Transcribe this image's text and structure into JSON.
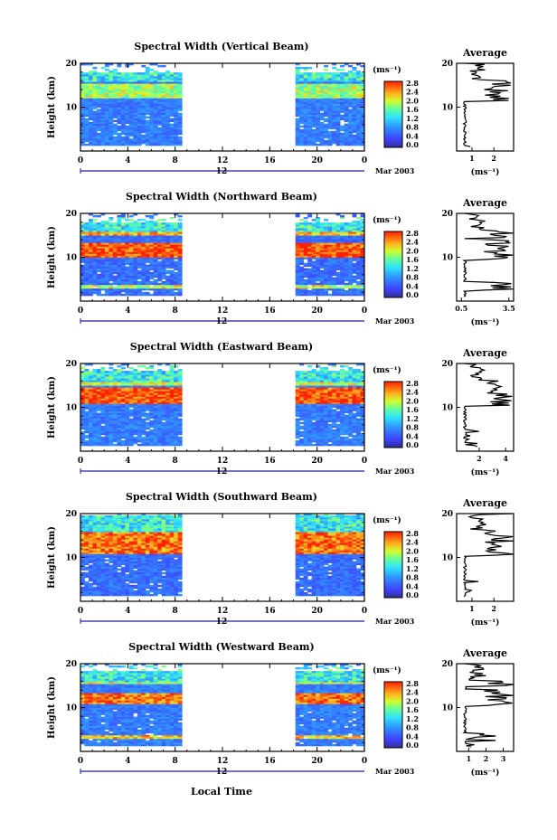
{
  "panels": [
    {
      "title": "Spectral Width (Vertical Beam)",
      "avg_ticks": [
        "1",
        "2"
      ],
      "avg_xlim": [
        0.3,
        2.9
      ],
      "avg_ticks_v": [
        1,
        2
      ]
    },
    {
      "title": "Spectral Width (Northward Beam)",
      "avg_ticks": [
        "0.5",
        "3.5"
      ],
      "avg_xlim": [
        0.2,
        3.8
      ],
      "avg_ticks_v": [
        0.5,
        3.5
      ]
    },
    {
      "title": "Spectral Width (Eastward Beam)",
      "avg_ticks": [
        "2",
        "4"
      ],
      "avg_xlim": [
        0.3,
        4.6
      ],
      "avg_ticks_v": [
        2,
        4
      ]
    },
    {
      "title": "Spectral Width (Southward Beam)",
      "avg_ticks": [
        "1",
        "2"
      ],
      "avg_xlim": [
        0.3,
        2.9
      ],
      "avg_ticks_v": [
        1,
        2
      ]
    },
    {
      "title": "Spectral Width (Westward Beam)",
      "avg_ticks": [
        "1",
        "2",
        "3"
      ],
      "avg_xlim": [
        0.3,
        3.6
      ],
      "avg_ticks_v": [
        1,
        2,
        3
      ]
    }
  ],
  "labels": {
    "ylabel": "Height (km)",
    "xlabel": "Local Time",
    "avg_title": "Average",
    "avg_unit": "(ms⁻¹)",
    "cbar_unit": "(ms⁻¹)",
    "date_label": "Mar 2003",
    "day_label": "12"
  },
  "chart_data": {
    "type": "heatmap",
    "x_ticks": [
      "0",
      "4",
      "8",
      "12",
      "16",
      "20",
      "0"
    ],
    "x_range": [
      0,
      24
    ],
    "y_ticks": [
      "10",
      "20"
    ],
    "y_range": [
      0,
      20
    ],
    "colorbar_ticks": [
      "0.0",
      "0.4",
      "0.8",
      "1.2",
      "1.6",
      "2.0",
      "2.4",
      "2.8"
    ],
    "colorbar_range": [
      0,
      3.0
    ],
    "data_gaps_hours": [
      [
        8.5,
        18.3
      ]
    ],
    "colors": {
      "low": "#2a2a9f",
      "mid": "#2ad0ff",
      "high": "#ff2a00"
    }
  }
}
